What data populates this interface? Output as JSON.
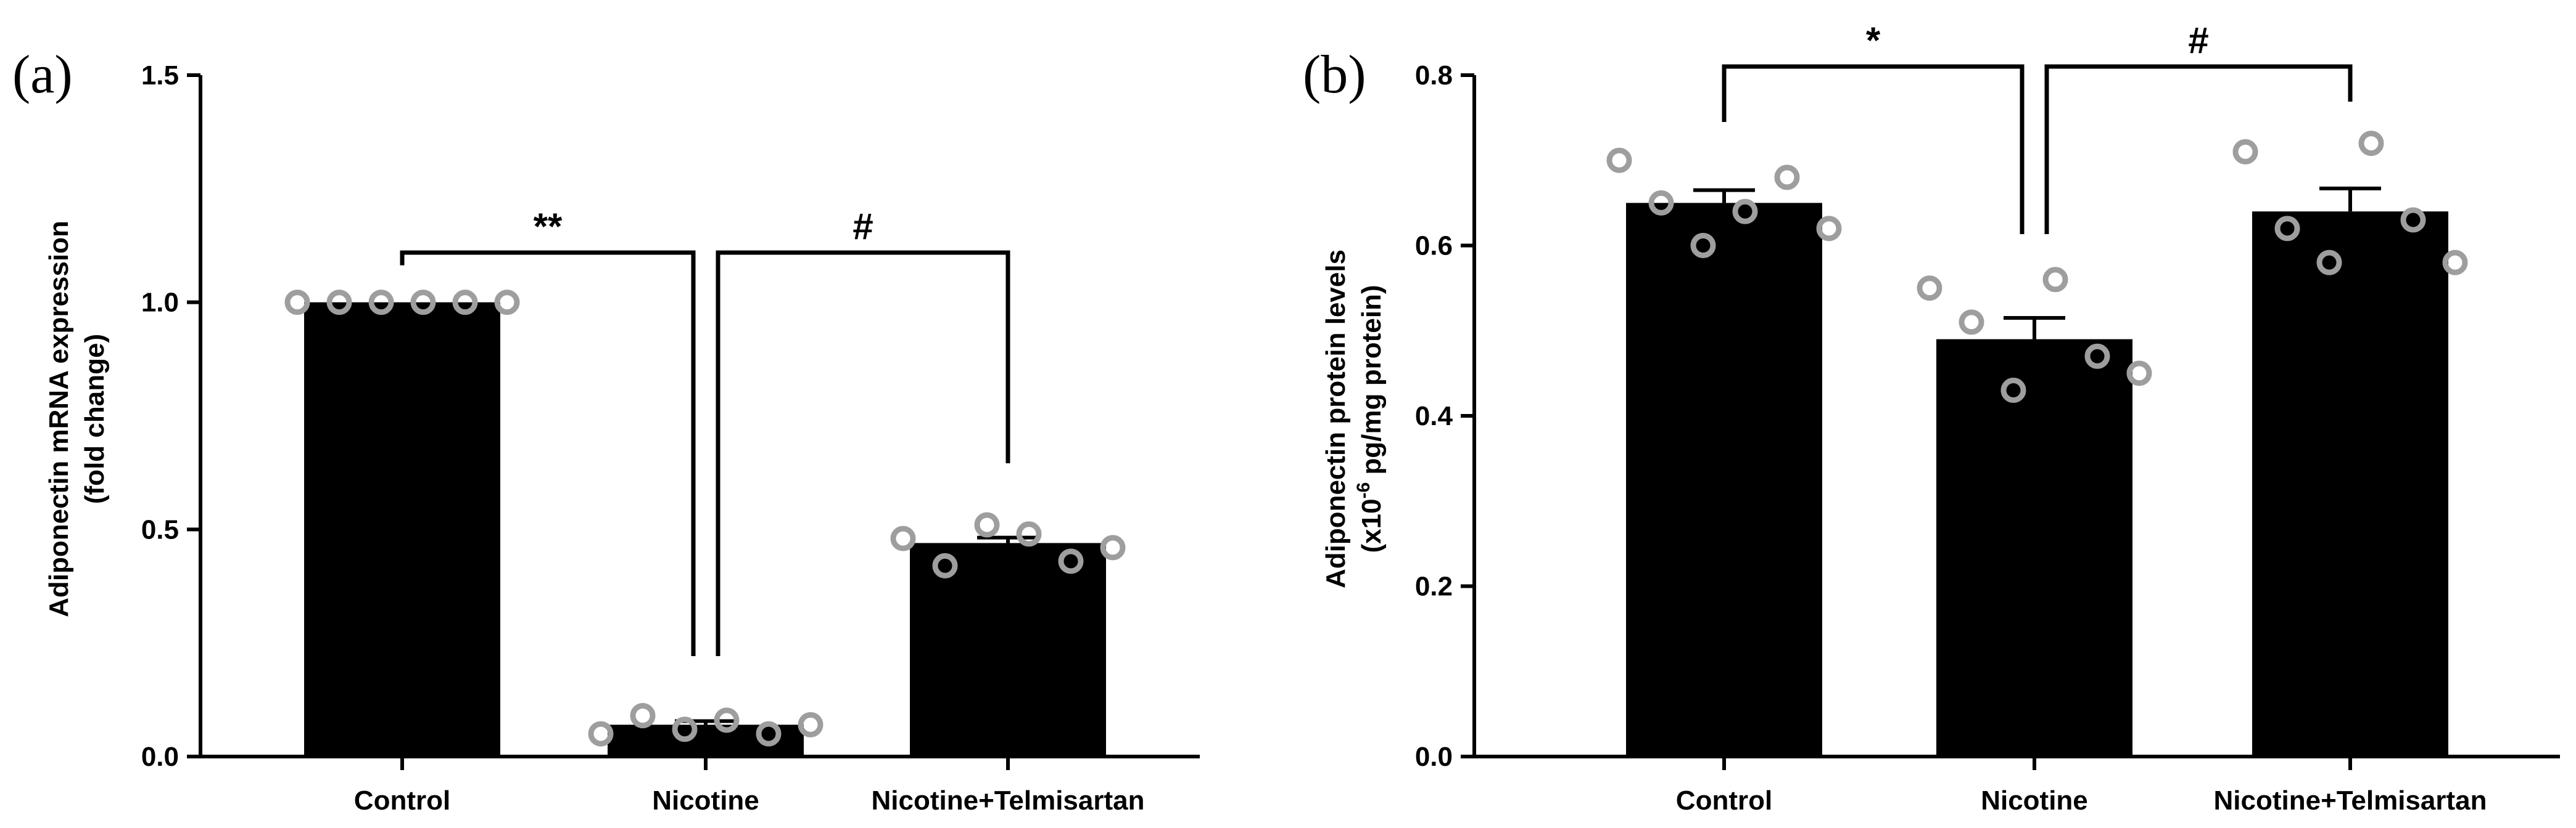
{
  "chart_data": [
    {
      "panel_label": "(a)",
      "type": "bar",
      "categories": [
        "Control",
        "Nicotine",
        "Nicotine+Telmisartan"
      ],
      "values": [
        1.0,
        0.07,
        0.47
      ],
      "errors": [
        0.0,
        0.008,
        0.012
      ],
      "points": [
        [
          1.0,
          1.0,
          1.0,
          1.0,
          1.0,
          1.0
        ],
        [
          0.05,
          0.09,
          0.06,
          0.08,
          0.05,
          0.07
        ],
        [
          0.48,
          0.42,
          0.51,
          0.49,
          0.43,
          0.46
        ]
      ],
      "ylabel_lines": [
        "Adiponectin mRNA expression",
        "(fold change)"
      ],
      "xlabel": "",
      "ylim": [
        0,
        1.5
      ],
      "yticks": [
        "0.0",
        "0.5",
        "1.0",
        "1.5"
      ],
      "significance": [
        {
          "label": "**",
          "from": "Control",
          "to": "Nicotine"
        },
        {
          "label": "#",
          "from": "Nicotine",
          "to": "Nicotine+Telmisartan"
        }
      ],
      "colors": {
        "bar": "#000000",
        "point": "#9e9e9e"
      }
    },
    {
      "panel_label": "(b)",
      "type": "bar",
      "categories": [
        "Control",
        "Nicotine",
        "Nicotine+Telmisartan"
      ],
      "values": [
        0.65,
        0.49,
        0.64
      ],
      "errors": [
        0.015,
        0.025,
        0.027
      ],
      "points": [
        [
          0.7,
          0.65,
          0.6,
          0.64,
          0.68,
          0.62
        ],
        [
          0.55,
          0.51,
          0.43,
          0.56,
          0.47,
          0.45
        ],
        [
          0.71,
          0.62,
          0.58,
          0.72,
          0.63,
          0.58
        ]
      ],
      "ylabel_lines": [
        "Adiponectin protein levels",
        "(x10",
        "-6",
        " pg/mg protein)"
      ],
      "xlabel": "",
      "ylim": [
        0,
        0.8
      ],
      "yticks": [
        "0.0",
        "0.2",
        "0.4",
        "0.6",
        "0.8"
      ],
      "significance": [
        {
          "label": "*",
          "from": "Control",
          "to": "Nicotine"
        },
        {
          "label": "#",
          "from": "Nicotine",
          "to": "Nicotine+Telmisartan"
        }
      ],
      "colors": {
        "bar": "#000000",
        "point": "#9e9e9e"
      }
    }
  ]
}
